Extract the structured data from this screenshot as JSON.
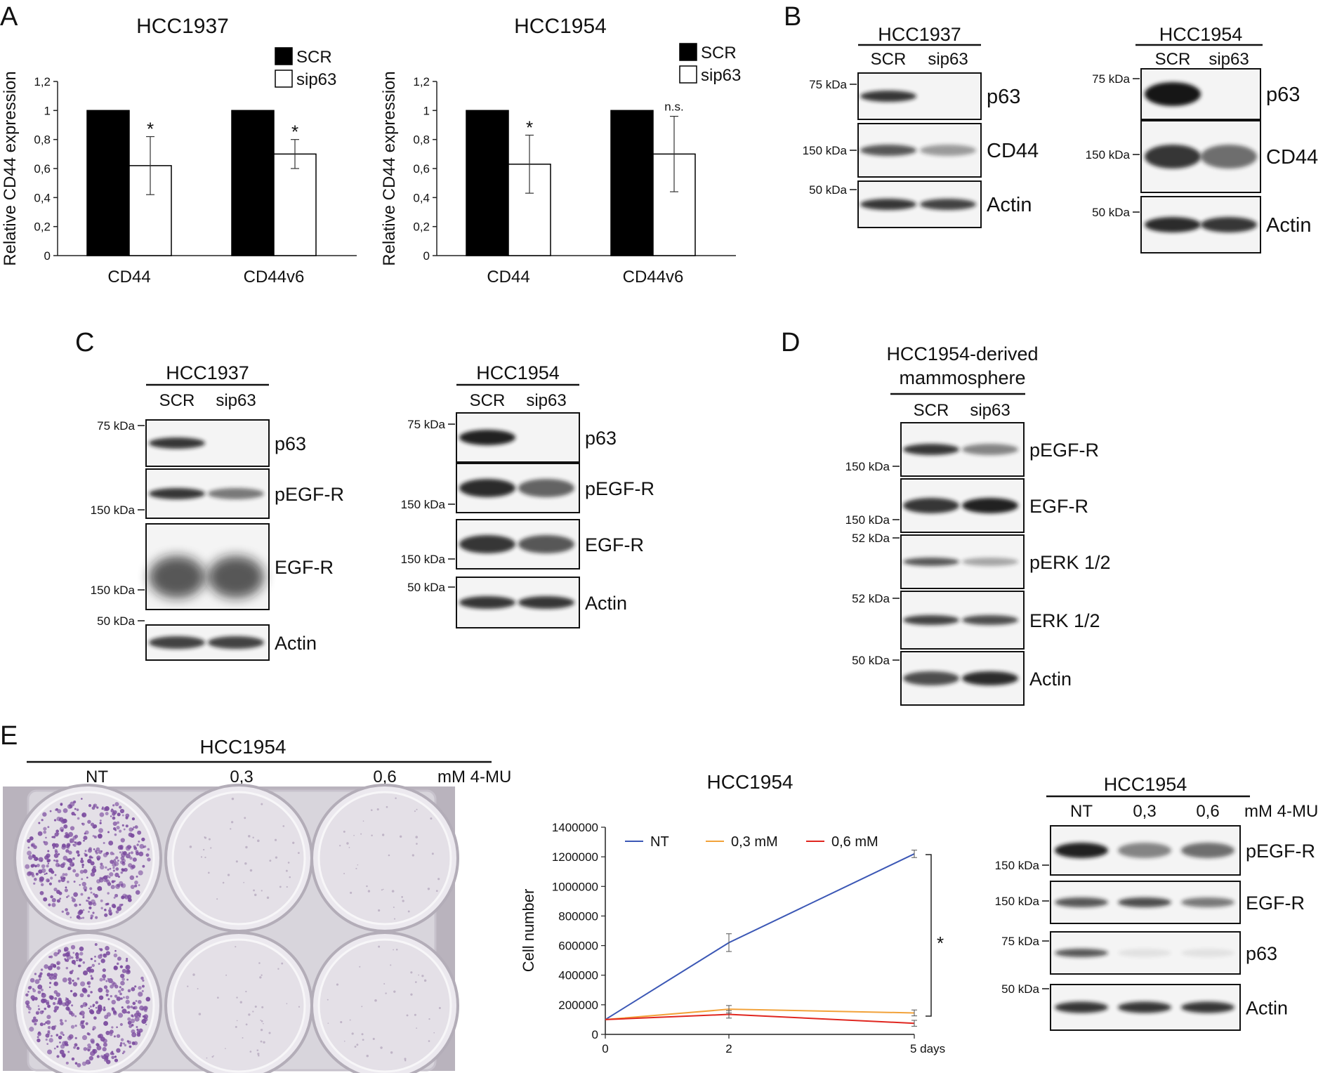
{
  "panel_letters": {
    "A": "A",
    "B": "B",
    "C": "C",
    "D": "D",
    "E": "E"
  },
  "chart_data": [
    {
      "type": "bar",
      "title": "HCC1937",
      "ylabel": "Relative CD44 expression",
      "xlabel": "",
      "ylim": [
        0,
        1.2
      ],
      "yticks": [
        "0",
        "0,2",
        "0,4",
        "0,6",
        "0,8",
        "1",
        "1,2"
      ],
      "categories": [
        "CD44",
        "CD44v6"
      ],
      "series": [
        {
          "name": "SCR",
          "values": [
            1.0,
            1.0
          ],
          "errors": [
            0,
            0
          ],
          "color": "#000000"
        },
        {
          "name": "sip63",
          "values": [
            0.62,
            0.7
          ],
          "errors": [
            0.2,
            0.1
          ],
          "color": "#ffffff"
        }
      ],
      "annotations": [
        "*",
        "*"
      ],
      "legend_position": "top-right"
    },
    {
      "type": "bar",
      "title": "HCC1954",
      "ylabel": "Relative CD44 expression",
      "xlabel": "",
      "ylim": [
        0,
        1.2
      ],
      "yticks": [
        "0",
        "0,2",
        "0,4",
        "0,6",
        "0,8",
        "1",
        "1,2"
      ],
      "categories": [
        "CD44",
        "CD44v6"
      ],
      "series": [
        {
          "name": "SCR",
          "values": [
            1.0,
            1.0
          ],
          "errors": [
            0,
            0
          ],
          "color": "#000000"
        },
        {
          "name": "sip63",
          "values": [
            0.63,
            0.7
          ],
          "errors": [
            0.2,
            0.26
          ],
          "color": "#ffffff"
        }
      ],
      "annotations": [
        "*",
        "n.s."
      ],
      "legend_position": "top-right"
    },
    {
      "type": "line",
      "title": "HCC1954",
      "ylabel": "Cell number",
      "xlabel": "",
      "x": [
        0,
        2,
        5
      ],
      "xticks": [
        "0",
        "2",
        "5 days"
      ],
      "ylim": [
        0,
        1400000
      ],
      "yticks": [
        "0",
        "200000",
        "400000",
        "600000",
        "800000",
        "1000000",
        "1200000",
        "1400000"
      ],
      "series": [
        {
          "name": "NT",
          "values": [
            100000,
            620000,
            1220000
          ],
          "errors": [
            0,
            60000,
            25000
          ],
          "color": "#3b57b5"
        },
        {
          "name": "0,3 mM",
          "values": [
            100000,
            170000,
            145000
          ],
          "errors": [
            0,
            25000,
            20000
          ],
          "color": "#f2a23a"
        },
        {
          "name": "0,6 mM",
          "values": [
            100000,
            135000,
            75000
          ],
          "errors": [
            0,
            25000,
            20000
          ],
          "color": "#e0261f"
        }
      ],
      "annotation": "*",
      "legend_position": "top"
    }
  ],
  "blotB1": {
    "title": "HCC1937",
    "lanes": [
      "SCR",
      "sip63"
    ],
    "rows": [
      {
        "label": "p63",
        "kda": "75 kDa"
      },
      {
        "label": "CD44",
        "kda": "150 kDa"
      },
      {
        "label": "Actin",
        "kda": "50 kDa"
      }
    ]
  },
  "blotB2": {
    "title": "HCC1954",
    "lanes": [
      "SCR",
      "sip63"
    ],
    "rows": [
      {
        "label": "p63",
        "kda": "75 kDa"
      },
      {
        "label": "CD44",
        "kda": "150 kDa"
      },
      {
        "label": "Actin",
        "kda": "50 kDa"
      }
    ]
  },
  "blotC1": {
    "title": "HCC1937",
    "lanes": [
      "SCR",
      "sip63"
    ],
    "rows": [
      {
        "label": "p63",
        "kda": "75 kDa"
      },
      {
        "label": "pEGF-R",
        "kda": "150 kDa"
      },
      {
        "label": "EGF-R",
        "kda": "150 kDa"
      },
      {
        "label": "Actin",
        "kda": "50 kDa"
      }
    ]
  },
  "blotC2": {
    "title": "HCC1954",
    "lanes": [
      "SCR",
      "sip63"
    ],
    "rows": [
      {
        "label": "p63",
        "kda": "75 kDa"
      },
      {
        "label": "pEGF-R",
        "kda": "150 kDa"
      },
      {
        "label": "EGF-R",
        "kda": "150 kDa"
      },
      {
        "label": "Actin",
        "kda": "50 kDa"
      }
    ]
  },
  "blotD": {
    "title": "HCC1954-derived",
    "title2": "mammosphere",
    "lanes": [
      "SCR",
      "sip63"
    ],
    "rows": [
      {
        "label": "pEGF-R",
        "kda": "150 kDa"
      },
      {
        "label": "EGF-R",
        "kda": "150 kDa"
      },
      {
        "label": "pERK 1/2",
        "kda": "52 kDa"
      },
      {
        "label": "ERK 1/2",
        "kda": "52 kDa"
      },
      {
        "label": "Actin",
        "kda": "50 kDa"
      }
    ]
  },
  "plateE": {
    "title": "HCC1954",
    "conditions": [
      "NT",
      "0,3",
      "0,6"
    ],
    "unit": "mM 4-MU"
  },
  "blotE": {
    "title": "HCC1954",
    "lanes": [
      "NT",
      "0,3",
      "0,6"
    ],
    "unit": "mM 4-MU",
    "rows": [
      {
        "label": "pEGF-R",
        "kda": "150 kDa"
      },
      {
        "label": "EGF-R",
        "kda": "150 kDa"
      },
      {
        "label": "p63",
        "kda": "75 kDa"
      },
      {
        "label": "Actin",
        "kda": "50 kDa"
      }
    ]
  }
}
